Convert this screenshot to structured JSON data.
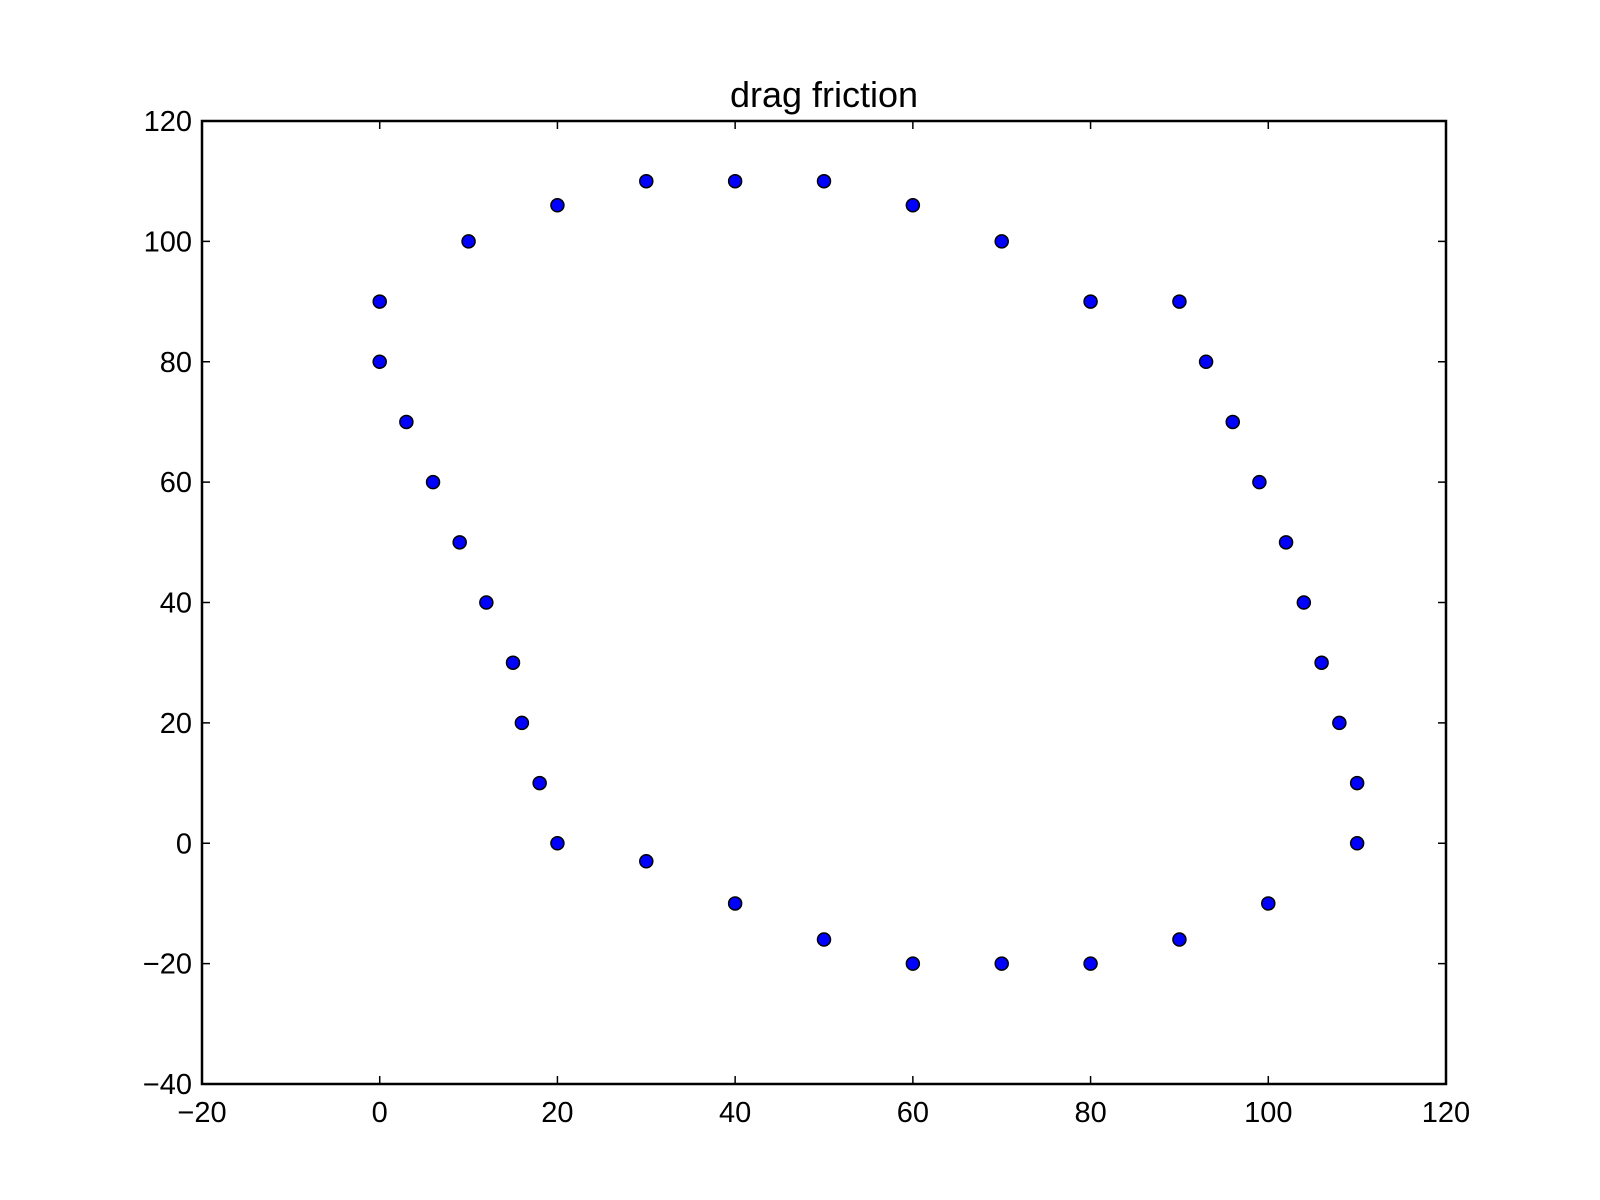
{
  "chart_data": {
    "type": "scatter",
    "title": "drag friction",
    "xlabel": "",
    "ylabel": "",
    "xlim": [
      -20,
      120
    ],
    "ylim": [
      -40,
      120
    ],
    "xticks": [
      -20,
      0,
      20,
      40,
      60,
      80,
      100,
      120
    ],
    "yticks": [
      -40,
      -20,
      0,
      20,
      40,
      60,
      80,
      100,
      120
    ],
    "xtick_labels": [
      "−20",
      "0",
      "20",
      "40",
      "60",
      "80",
      "100",
      "120"
    ],
    "ytick_labels": [
      "−40",
      "−20",
      "0",
      "20",
      "40",
      "60",
      "80",
      "100",
      "120"
    ],
    "grid": false,
    "legend": "none",
    "marker_color": "#0000ff",
    "marker_edge_color": "#000000",
    "series": [
      {
        "points": [
          [
            0,
            90
          ],
          [
            0,
            80
          ],
          [
            3,
            70
          ],
          [
            6,
            60
          ],
          [
            9,
            50
          ],
          [
            12,
            40
          ],
          [
            15,
            30
          ],
          [
            16,
            20
          ],
          [
            18,
            10
          ],
          [
            20,
            0
          ],
          [
            10,
            100
          ],
          [
            20,
            106
          ],
          [
            30,
            110
          ],
          [
            40,
            110
          ],
          [
            50,
            110
          ],
          [
            60,
            106
          ],
          [
            70,
            100
          ],
          [
            80,
            90
          ],
          [
            90,
            90
          ],
          [
            93,
            80
          ],
          [
            96,
            70
          ],
          [
            99,
            60
          ],
          [
            102,
            50
          ],
          [
            104,
            40
          ],
          [
            106,
            30
          ],
          [
            108,
            20
          ],
          [
            110,
            10
          ],
          [
            110,
            0
          ],
          [
            100,
            -10
          ],
          [
            90,
            -16
          ],
          [
            80,
            -20
          ],
          [
            70,
            -20
          ],
          [
            60,
            -20
          ],
          [
            50,
            -16
          ],
          [
            40,
            -10
          ],
          [
            30,
            -3
          ]
        ]
      }
    ]
  }
}
